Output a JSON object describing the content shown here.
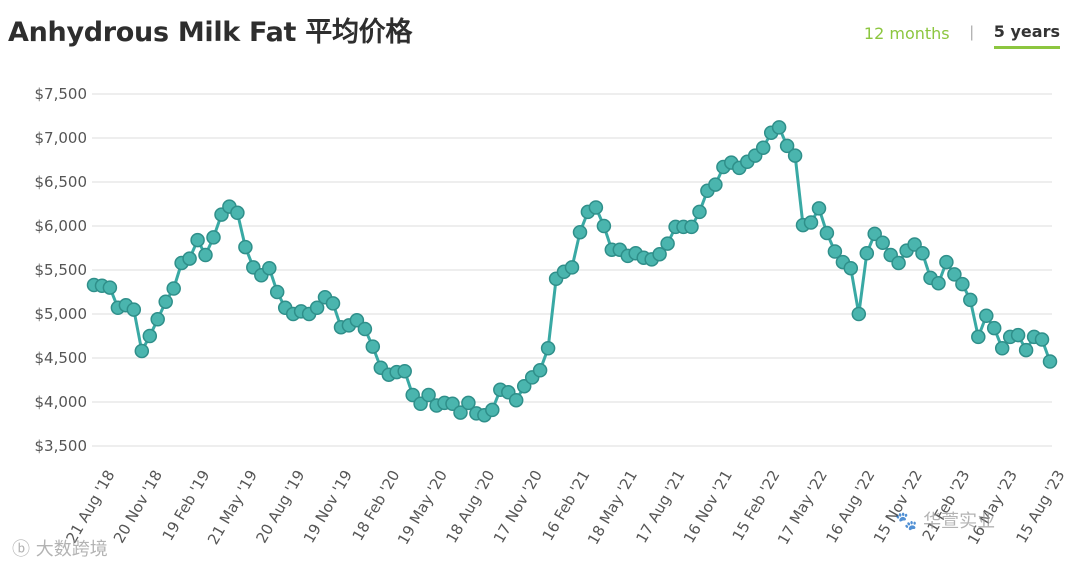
{
  "page": {
    "title": "Anhydrous Milk Fat 平均价格",
    "tabs": [
      {
        "label": "12 months",
        "active": false
      },
      {
        "label": "5 years",
        "active": true
      }
    ],
    "tab_separator": "|",
    "watermarks": [
      "ⓑ 大数跨境",
      "🐾 华萱实业"
    ]
  },
  "colors": {
    "line": "#39a9a4",
    "marker_fill": "#4ab5ae",
    "marker_stroke": "#2f8f8a",
    "grid": "#dddddd",
    "accent_green": "#8cc63f"
  },
  "chart_data": {
    "type": "line",
    "title": "Anhydrous Milk Fat 平均价格",
    "xlabel": "",
    "ylabel": "",
    "ylim": [
      3500,
      7500
    ],
    "y_ticks": [
      "$3,500",
      "$4,000",
      "$4,500",
      "$5,000",
      "$5,500",
      "$6,000",
      "$6,500",
      "$7,000",
      "$7,500"
    ],
    "grid": true,
    "x_tick_labels": [
      "21 Aug '18",
      "20 Nov '18",
      "19 Feb '19",
      "21 May '19",
      "20 Aug '19",
      "19 Nov '19",
      "18 Feb '20",
      "19 May '20",
      "18 Aug '20",
      "17 Nov '20",
      "16 Feb '21",
      "18 May '21",
      "17 Aug '21",
      "16 Nov '21",
      "15 Feb '22",
      "17 May '22",
      "16 Aug '22",
      "15 Nov '22",
      "21 Feb '23",
      "16 May '23",
      "15 Aug '23"
    ],
    "series": [
      {
        "values": [
          5330,
          5320,
          5300,
          5070,
          5100,
          5050,
          4580,
          4750,
          4940,
          5140,
          5290,
          5580,
          5630,
          5840,
          5670,
          5870,
          6130,
          6220,
          6150,
          5760,
          5530,
          5440,
          5520,
          5250,
          5070,
          5000,
          5030,
          5000,
          5070,
          5190,
          5120,
          4850,
          4870,
          4930,
          4830,
          4630,
          4390,
          4310,
          4340,
          4350,
          4080,
          3980,
          4080,
          3960,
          3990,
          3980,
          3880,
          3990,
          3870,
          3850,
          3910,
          4140,
          4110,
          4020,
          4180,
          4280,
          4360,
          4610,
          5400,
          5480,
          5530,
          5930,
          6160,
          6210,
          6000,
          5730,
          5730,
          5660,
          5690,
          5640,
          5620,
          5680,
          5800,
          5990,
          5990,
          5990,
          6160,
          6400,
          6470,
          6670,
          6720,
          6660,
          6730,
          6800,
          6890,
          7060,
          7120,
          6910,
          6800,
          6010,
          6040,
          6200,
          5920,
          5710,
          5590,
          5520,
          5000,
          5690,
          5910,
          5810,
          5670,
          5580,
          5720,
          5790,
          5690,
          5410,
          5350,
          5590,
          5450,
          5340,
          5160,
          4740,
          4980,
          4840,
          4610,
          4740,
          4760,
          4590,
          4740,
          4710,
          4460
        ]
      }
    ]
  }
}
